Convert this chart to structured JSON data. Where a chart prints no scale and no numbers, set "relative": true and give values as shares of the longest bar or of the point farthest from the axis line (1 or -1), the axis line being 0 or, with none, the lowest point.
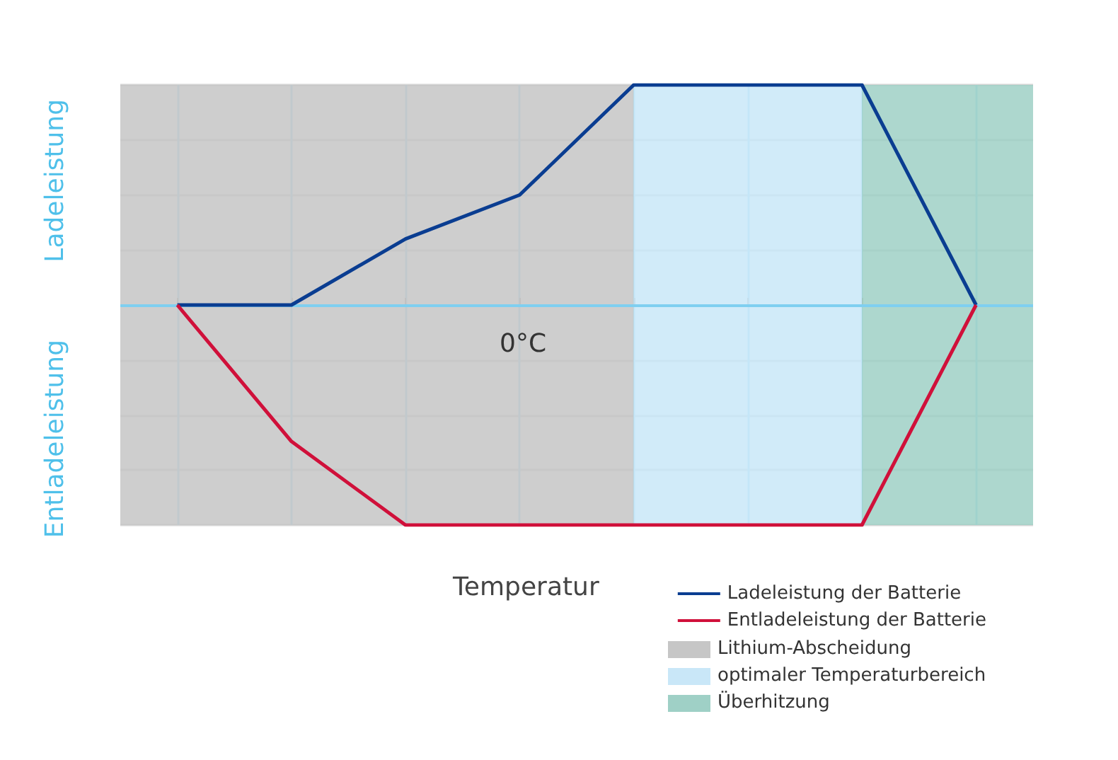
{
  "chart_data": {
    "type": "line",
    "relative": true,
    "xlabel": "Temperatur",
    "ylabel": "Ladeleistung",
    "annotations": [
      "Entladeleistung",
      "0°C",
      "Lithium-Abscheidung",
      "optimaler Temperaturbereich",
      "Überhitzung"
    ],
    "categories": [
      null,
      null,
      null,
      null,
      null,
      null,
      null,
      null
    ],
    "series": [
      {
        "name": "Ladeleistung der Batterie",
        "color": "#0a3d91",
        "values": [
          0,
          0,
          0.3,
          0.5,
          1,
          1,
          1,
          0
        ]
      },
      {
        "name": "Entladeleistung der Batterie",
        "color": "#d0103a",
        "values": [
          0,
          -0.62,
          -1,
          -1,
          -1,
          -1,
          -1,
          0
        ]
      }
    ],
    "ref_lines": [
      {
        "axis": "y",
        "value": 0,
        "color": "#7fcff0"
      }
    ],
    "grid": true,
    "legend": "bottom right",
    "marker": "none",
    "line_style": "solid"
  }
}
